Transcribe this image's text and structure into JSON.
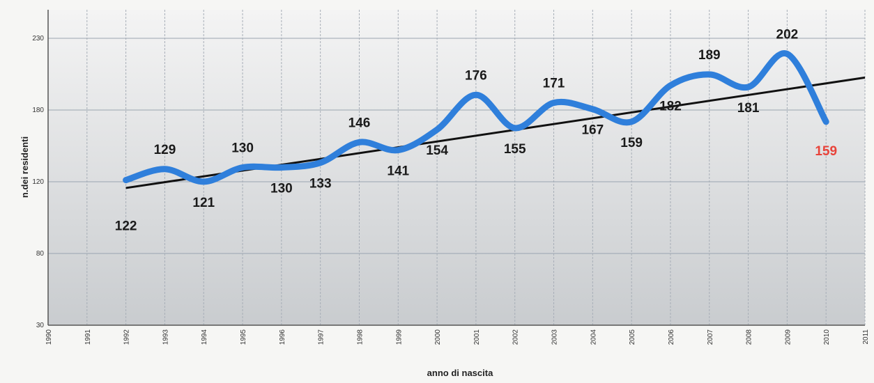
{
  "chart_data": {
    "type": "line",
    "xlabel": "anno di nascita",
    "ylabel": "n.dei residenti",
    "x_ticks": [
      "1990",
      "1991",
      "1992",
      "1993",
      "1994",
      "1995",
      "1996",
      "1997",
      "1998",
      "1999",
      "2000",
      "2001",
      "2002",
      "2003",
      "2004",
      "2005",
      "2006",
      "2007",
      "2008",
      "2009",
      "2010",
      "2011"
    ],
    "y_ticks": [
      "30",
      "80",
      "120",
      "180",
      "230"
    ],
    "xlim": [
      1990,
      2011
    ],
    "ylim": [
      30,
      230
    ],
    "grid": true,
    "series": [
      {
        "color": "#2f7fdb",
        "x": [
          1992,
          1993,
          1994,
          1995,
          1996,
          1997,
          1998,
          1999,
          2000,
          2001,
          2002,
          2003,
          2004,
          2005,
          2006,
          2007,
          2008,
          2009,
          2010
        ],
        "values": [
          122,
          129,
          121,
          130,
          130,
          133,
          146,
          141,
          154,
          176,
          155,
          171,
          167,
          159,
          182,
          189,
          181,
          202,
          159
        ],
        "labels": [
          "122",
          "129",
          "121",
          "130",
          "130",
          "133",
          "146",
          "141",
          "154",
          "176",
          "155",
          "171",
          "167",
          "159",
          "182",
          "189",
          "181",
          "202",
          "159"
        ],
        "highlight_last_color": "#e8433a"
      }
    ],
    "trendline": {
      "color": "#111111",
      "x": [
        1992,
        2011
      ],
      "values": [
        117,
        187
      ]
    }
  }
}
